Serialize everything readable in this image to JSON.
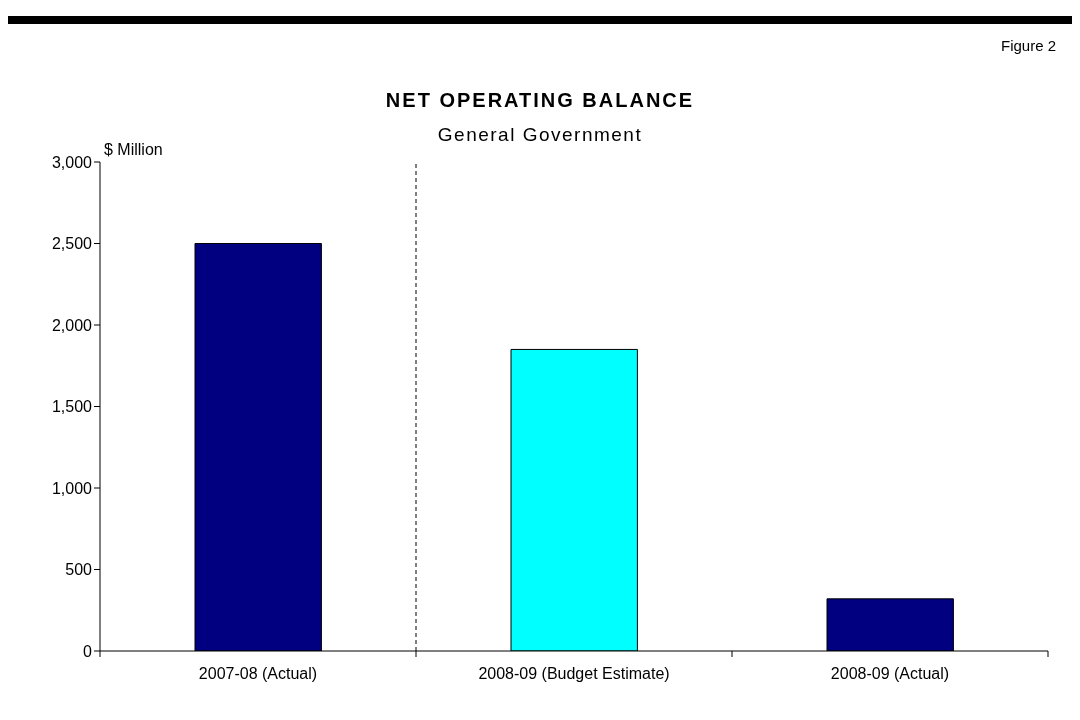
{
  "chart_data": {
    "type": "bar",
    "title": "NET OPERATING BALANCE",
    "subtitle": "General Government",
    "ylabel": "$ Million",
    "categories": [
      "2007-08 (Actual)",
      "2008-09 (Budget Estimate)",
      "2008-09 (Actual)"
    ],
    "values": [
      2500,
      1850,
      320
    ],
    "colors": [
      "#000080",
      "#00ffff",
      "#000080"
    ],
    "ylim": [
      0,
      3000
    ],
    "yticks": [
      0,
      500,
      {
        "value": 1000,
        "label": "1,000"
      },
      {
        "value": 1500,
        "label": "1,500"
      },
      {
        "value": 2000,
        "label": "2,000"
      },
      {
        "value": 2500,
        "label": "2,500"
      },
      {
        "value": 3000,
        "label": "3,000"
      }
    ],
    "annotations": [
      "Figure 2"
    ],
    "grid": false,
    "legend": false
  }
}
